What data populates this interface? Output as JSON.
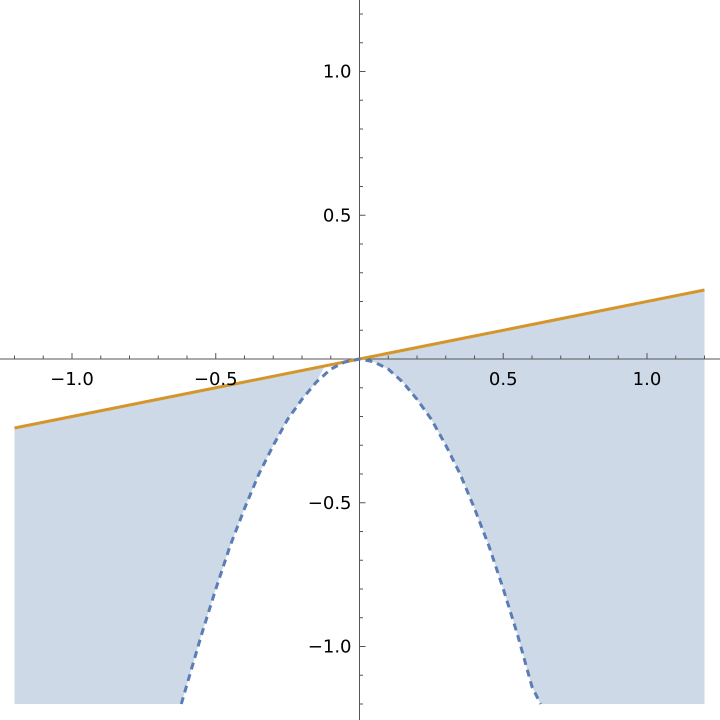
{
  "chart_data": {
    "type": "area",
    "title": "",
    "xlabel": "",
    "ylabel": "",
    "xlim": [
      -1.2,
      1.2
    ],
    "ylim": [
      -1.2,
      1.2
    ],
    "grid": false,
    "x_ticks": [
      {
        "value": -1.0,
        "label": "−1.0"
      },
      {
        "value": -0.5,
        "label": "−0.5"
      },
      {
        "value": 0.5,
        "label": "0.5"
      },
      {
        "value": 1.0,
        "label": "1.0"
      }
    ],
    "y_ticks": [
      {
        "value": 1.0,
        "label": "1.0"
      },
      {
        "value": 0.5,
        "label": "0.5"
      },
      {
        "value": -0.5,
        "label": "−0.5"
      },
      {
        "value": -1.0,
        "label": "−1.0"
      }
    ],
    "series": [
      {
        "kind": "line",
        "style": "solid",
        "color": "#d4952b",
        "x": [
          -1.2,
          -0.8,
          -0.4,
          0.0,
          0.4,
          0.8,
          1.2
        ],
        "y": [
          -0.24,
          -0.16,
          -0.08,
          0.0,
          0.08,
          0.16,
          0.24
        ]
      },
      {
        "kind": "line",
        "style": "dashed",
        "color": "#5b7db5",
        "x": [
          -0.62,
          -0.55,
          -0.5,
          -0.45,
          -0.4,
          -0.35,
          -0.3,
          -0.25,
          -0.2,
          -0.15,
          -0.1,
          -0.05,
          0.0,
          0.05,
          0.1,
          0.15,
          0.2,
          0.25,
          0.3,
          0.35,
          0.4,
          0.45,
          0.5,
          0.55,
          0.6,
          0.63
        ],
        "y": [
          -1.2,
          -0.96,
          -0.8,
          -0.65,
          -0.52,
          -0.4,
          -0.3,
          -0.21,
          -0.14,
          -0.08,
          -0.035,
          -0.01,
          0.0,
          -0.01,
          -0.035,
          -0.08,
          -0.14,
          -0.21,
          -0.3,
          -0.4,
          -0.52,
          -0.65,
          -0.8,
          -0.96,
          -1.14,
          -1.2
        ]
      }
    ],
    "regions": [
      {
        "color": "#cdd9e6",
        "x": [
          -1.2,
          -0.62,
          -0.55,
          -0.5,
          -0.45,
          -0.4,
          -0.35,
          -0.3,
          -0.25,
          -0.2,
          -0.15,
          -0.12,
          -1.2
        ],
        "y": [
          -1.2,
          -1.2,
          -0.96,
          -0.8,
          -0.65,
          -0.52,
          -0.4,
          -0.3,
          -0.21,
          -0.14,
          -0.08,
          -0.024,
          -0.24
        ]
      },
      {
        "color": "#cdd9e6",
        "x": [
          0.0,
          0.05,
          0.1,
          0.15,
          0.2,
          0.25,
          0.3,
          0.35,
          0.4,
          0.45,
          0.5,
          0.55,
          0.6,
          0.63,
          1.2,
          1.2,
          0.0
        ],
        "y": [
          0.0,
          -0.01,
          -0.035,
          -0.08,
          -0.14,
          -0.21,
          -0.3,
          -0.4,
          -0.52,
          -0.65,
          -0.8,
          -0.96,
          -1.14,
          -1.2,
          -1.2,
          0.24,
          0.0
        ]
      }
    ]
  }
}
